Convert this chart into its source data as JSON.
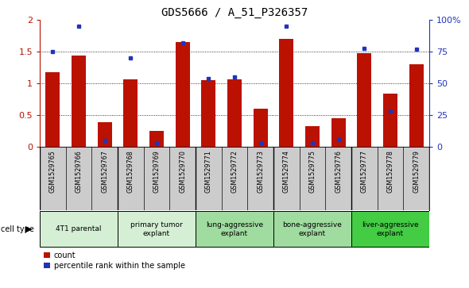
{
  "title": "GDS5666 / A_51_P326357",
  "samples": [
    "GSM1529765",
    "GSM1529766",
    "GSM1529767",
    "GSM1529768",
    "GSM1529769",
    "GSM1529770",
    "GSM1529771",
    "GSM1529772",
    "GSM1529773",
    "GSM1529774",
    "GSM1529775",
    "GSM1529776",
    "GSM1529777",
    "GSM1529778",
    "GSM1529779"
  ],
  "counts": [
    1.18,
    1.44,
    0.39,
    1.06,
    0.25,
    1.66,
    1.05,
    1.07,
    0.6,
    1.7,
    0.33,
    0.45,
    1.48,
    0.84,
    1.31
  ],
  "percentiles": [
    75,
    95,
    5,
    70,
    3,
    82,
    54,
    55,
    3,
    95,
    3,
    6,
    78,
    28,
    77
  ],
  "cell_groups": [
    {
      "label": "4T1 parental",
      "start": 0,
      "end": 3,
      "color": "#d4efd4"
    },
    {
      "label": "primary tumor\nexplant",
      "start": 3,
      "end": 6,
      "color": "#d4efd4"
    },
    {
      "label": "lung-aggressive\nexplant",
      "start": 6,
      "end": 9,
      "color": "#a0dba0"
    },
    {
      "label": "bone-aggressive\nexplant",
      "start": 9,
      "end": 12,
      "color": "#a0dba0"
    },
    {
      "label": "liver-aggressive\nexplant",
      "start": 12,
      "end": 15,
      "color": "#44cc44"
    }
  ],
  "bar_color": "#bb1100",
  "dot_color": "#2233bb",
  "ylim_left": [
    0,
    2
  ],
  "ylim_right": [
    0,
    100
  ],
  "yticks_left": [
    0,
    0.5,
    1.0,
    1.5,
    2.0
  ],
  "ytick_labels_left": [
    "0",
    "0.5",
    "1",
    "1.5",
    "2"
  ],
  "yticks_right": [
    0,
    25,
    50,
    75,
    100
  ],
  "ytick_labels_right": [
    "0",
    "25",
    "50",
    "75",
    "100%"
  ],
  "bar_width": 0.55,
  "xlabels_bg": "#cccccc",
  "plot_bg": "#ffffff"
}
